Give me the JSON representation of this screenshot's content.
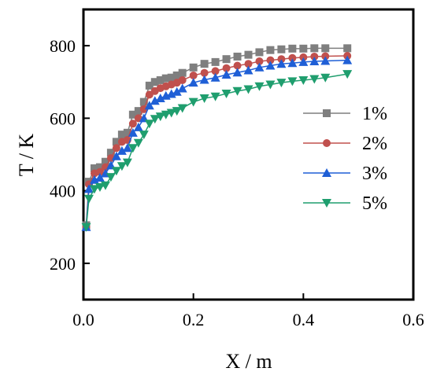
{
  "chart_data": {
    "type": "line",
    "title": "",
    "xlabel": "X / m",
    "ylabel": "T / K",
    "xlim": [
      0.0,
      0.6
    ],
    "ylim": [
      100,
      900
    ],
    "xticks": [
      0.0,
      0.2,
      0.4,
      0.6
    ],
    "xtick_labels": [
      "0.0",
      "0.2",
      "0.4",
      "0.6"
    ],
    "yticks": [
      200,
      400,
      600,
      800
    ],
    "ytick_labels": [
      "200",
      "400",
      "600",
      "800"
    ],
    "grid": false,
    "legend_position": "right",
    "series": [
      {
        "name": "1%",
        "color": "#7f7f7f",
        "marker": "square",
        "x": [
          0.005,
          0.01,
          0.02,
          0.03,
          0.04,
          0.05,
          0.06,
          0.07,
          0.08,
          0.09,
          0.1,
          0.11,
          0.12,
          0.13,
          0.14,
          0.15,
          0.16,
          0.17,
          0.18,
          0.2,
          0.22,
          0.24,
          0.26,
          0.28,
          0.3,
          0.32,
          0.34,
          0.36,
          0.38,
          0.4,
          0.42,
          0.44,
          0.48
        ],
        "y": [
          305,
          425,
          462,
          465,
          480,
          505,
          535,
          555,
          560,
          610,
          620,
          645,
          690,
          700,
          705,
          710,
          712,
          718,
          725,
          740,
          750,
          755,
          763,
          770,
          775,
          782,
          788,
          790,
          792,
          792,
          793,
          793,
          793
        ]
      },
      {
        "name": "2%",
        "color": "#c0504d",
        "marker": "circle",
        "x": [
          0.005,
          0.01,
          0.02,
          0.03,
          0.04,
          0.05,
          0.06,
          0.07,
          0.08,
          0.09,
          0.1,
          0.11,
          0.12,
          0.13,
          0.14,
          0.15,
          0.16,
          0.17,
          0.18,
          0.2,
          0.22,
          0.24,
          0.26,
          0.28,
          0.3,
          0.32,
          0.34,
          0.36,
          0.38,
          0.4,
          0.42,
          0.44,
          0.48
        ],
        "y": [
          300,
          418,
          448,
          452,
          465,
          490,
          518,
          535,
          540,
          585,
          600,
          625,
          665,
          675,
          683,
          688,
          693,
          698,
          705,
          718,
          725,
          730,
          738,
          745,
          750,
          757,
          760,
          763,
          766,
          768,
          770,
          771,
          772
        ]
      },
      {
        "name": "3%",
        "color": "#1f5fd6",
        "marker": "triangle-up",
        "x": [
          0.005,
          0.01,
          0.02,
          0.03,
          0.04,
          0.05,
          0.06,
          0.07,
          0.08,
          0.09,
          0.1,
          0.11,
          0.12,
          0.13,
          0.14,
          0.15,
          0.16,
          0.17,
          0.18,
          0.2,
          0.22,
          0.24,
          0.26,
          0.28,
          0.3,
          0.32,
          0.34,
          0.36,
          0.38,
          0.4,
          0.42,
          0.44,
          0.48
        ],
        "y": [
          300,
          405,
          430,
          436,
          448,
          470,
          495,
          510,
          518,
          560,
          575,
          600,
          635,
          648,
          655,
          662,
          667,
          673,
          682,
          698,
          706,
          712,
          720,
          726,
          732,
          740,
          745,
          750,
          752,
          755,
          757,
          758,
          760
        ]
      },
      {
        "name": "5%",
        "color": "#1f9e6e",
        "marker": "triangle-down",
        "x": [
          0.005,
          0.01,
          0.02,
          0.03,
          0.04,
          0.05,
          0.06,
          0.07,
          0.08,
          0.09,
          0.1,
          0.11,
          0.12,
          0.13,
          0.14,
          0.15,
          0.16,
          0.17,
          0.18,
          0.2,
          0.22,
          0.24,
          0.26,
          0.28,
          0.3,
          0.32,
          0.34,
          0.36,
          0.38,
          0.4,
          0.42,
          0.44,
          0.48
        ],
        "y": [
          300,
          378,
          405,
          410,
          415,
          438,
          455,
          468,
          478,
          518,
          532,
          555,
          585,
          598,
          605,
          610,
          615,
          620,
          628,
          645,
          655,
          660,
          668,
          675,
          680,
          688,
          693,
          698,
          702,
          705,
          708,
          712,
          722
        ]
      }
    ]
  }
}
